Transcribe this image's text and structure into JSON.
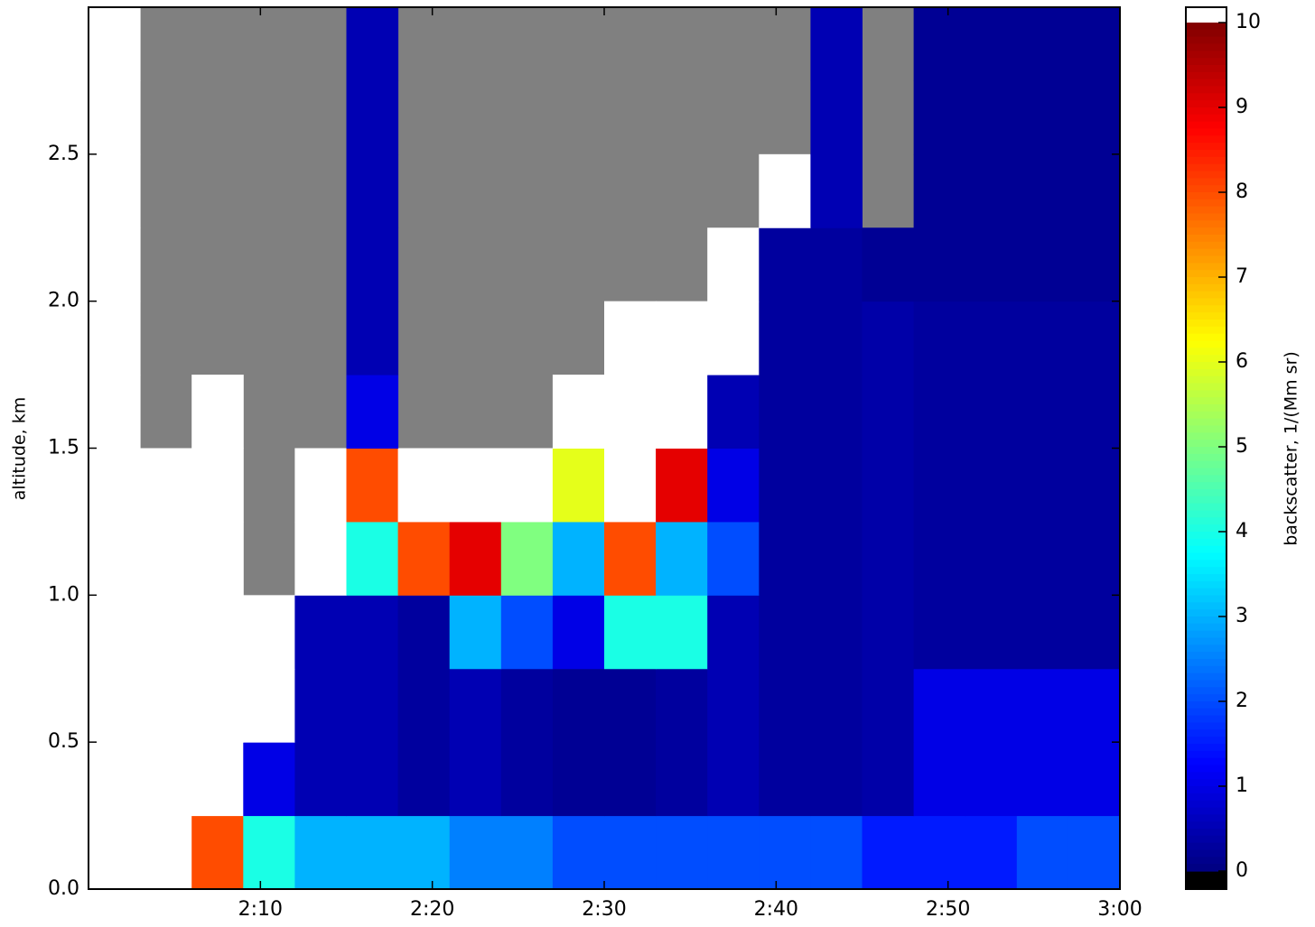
{
  "chart_data": {
    "type": "heatmap",
    "xlabel": null,
    "ylabel": "altitude, km",
    "colorbar_label": "backscatter, 1/(Mm sr)",
    "xbins": [
      120,
      123,
      126,
      129,
      132,
      135,
      138,
      141,
      144,
      147,
      150,
      153,
      156,
      159,
      162,
      165,
      168,
      171,
      174,
      177,
      180
    ],
    "ybins": [
      0,
      0.25,
      0.5,
      0.75,
      1,
      1.25,
      1.5,
      1.75,
      2,
      2.25,
      2.5,
      2.75,
      3
    ],
    "z": [
      [
        12,
        12,
        8,
        4,
        3,
        3,
        3,
        2.5,
        2.5,
        2,
        2,
        2,
        2,
        2,
        2,
        1.5,
        1.5,
        1.5,
        2,
        2
      ],
      [
        12,
        12,
        12,
        1,
        0.5,
        0.5,
        0.3,
        0.5,
        0.3,
        0.2,
        0.2,
        0.3,
        0.5,
        0.3,
        0.3,
        0.4,
        1,
        1,
        1,
        1
      ],
      [
        12,
        12,
        12,
        12,
        0.5,
        0.5,
        0.3,
        0.5,
        0.3,
        0.2,
        0.2,
        0.3,
        0.5,
        0.3,
        0.3,
        0.4,
        1,
        1,
        1,
        1
      ],
      [
        12,
        12,
        12,
        12,
        0.5,
        0.5,
        0.3,
        3,
        2,
        1,
        4,
        4,
        0.5,
        0.3,
        0.3,
        0.4,
        0.3,
        0.3,
        0.3,
        0.3
      ],
      [
        12,
        12,
        12,
        null,
        12,
        4,
        8,
        9,
        5,
        3,
        8,
        3,
        2,
        0.3,
        0.3,
        0.4,
        0.3,
        0.3,
        0.3,
        0.3
      ],
      [
        12,
        12,
        12,
        null,
        12,
        8,
        12,
        12,
        12,
        6,
        12,
        9,
        1,
        0.3,
        0.3,
        0.4,
        0.3,
        0.3,
        0.3,
        0.3
      ],
      [
        12,
        null,
        12,
        null,
        null,
        1,
        null,
        null,
        null,
        12,
        12,
        12,
        0.5,
        0.3,
        0.3,
        0.4,
        0.3,
        0.3,
        0.3,
        0.3
      ],
      [
        12,
        null,
        null,
        null,
        null,
        0.5,
        null,
        null,
        null,
        null,
        12,
        12,
        12,
        0.3,
        0.3,
        0.4,
        0.3,
        0.3,
        0.3,
        0.3
      ],
      [
        12,
        null,
        null,
        null,
        null,
        0.5,
        null,
        null,
        null,
        null,
        null,
        null,
        12,
        0.3,
        0.3,
        0.2,
        0.2,
        0.2,
        0.2,
        0.2
      ],
      [
        12,
        null,
        null,
        null,
        null,
        0.5,
        null,
        null,
        null,
        null,
        null,
        null,
        null,
        12,
        0.5,
        null,
        0.2,
        0.2,
        0.2,
        0.2
      ],
      [
        12,
        null,
        null,
        null,
        null,
        0.5,
        null,
        null,
        null,
        null,
        null,
        null,
        null,
        null,
        0.5,
        null,
        0.2,
        0.2,
        0.2,
        0.2
      ],
      [
        12,
        null,
        null,
        null,
        null,
        0.5,
        null,
        null,
        null,
        null,
        null,
        null,
        null,
        null,
        0.5,
        null,
        0.2,
        0.2,
        0.2,
        0.2
      ]
    ],
    "cmap": "jet",
    "zlim": [
      0,
      10
    ],
    "under_color": "#000000",
    "over_color": "#ffffff",
    "mask_color": "#808080",
    "xlim": [
      120,
      180
    ],
    "ylim": [
      0,
      3
    ],
    "xticks": [
      {
        "value": 130,
        "label": "2:10"
      },
      {
        "value": 140,
        "label": "2:20"
      },
      {
        "value": 150,
        "label": "2:30"
      },
      {
        "value": 160,
        "label": "2:40"
      },
      {
        "value": 170,
        "label": "2:50"
      },
      {
        "value": 180,
        "label": "3:00"
      }
    ],
    "yticks": [
      {
        "value": 0,
        "label": "0.0"
      },
      0.5,
      {
        "value": 1,
        "label": "1.0"
      },
      1.5,
      {
        "value": 2,
        "label": "2.0"
      },
      2.5
    ],
    "cticks": [
      0,
      1,
      2,
      3,
      4,
      5,
      6,
      7,
      8,
      9,
      10
    ]
  }
}
